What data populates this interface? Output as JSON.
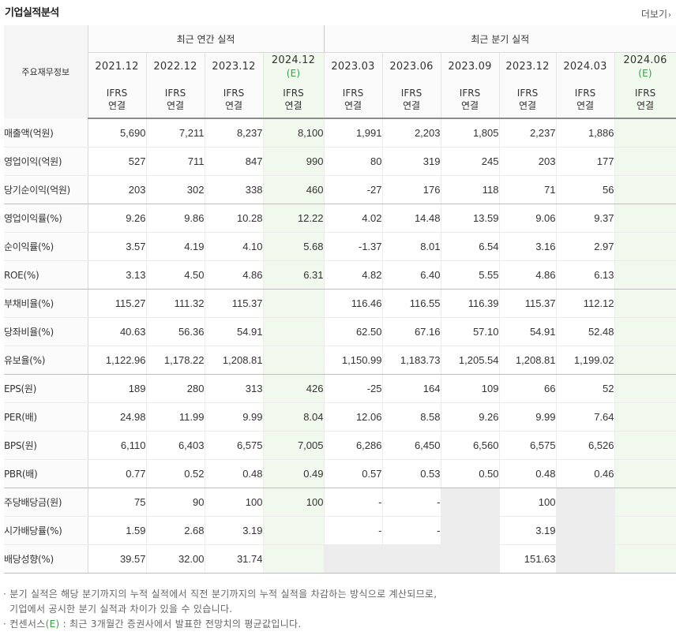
{
  "title": "기업실적분석",
  "more_label": "더보기",
  "more_arrow": "›",
  "header": {
    "key_label": "주요재무정보",
    "annual_group": "최근 연간 실적",
    "quarter_group": "최근 분기 실적",
    "periods": [
      {
        "date": "2021.12",
        "e": ""
      },
      {
        "date": "2022.12",
        "e": ""
      },
      {
        "date": "2023.12",
        "e": ""
      },
      {
        "date": "2024.12",
        "e": "(E)"
      },
      {
        "date": "2023.03",
        "e": ""
      },
      {
        "date": "2023.06",
        "e": ""
      },
      {
        "date": "2023.09",
        "e": ""
      },
      {
        "date": "2023.12",
        "e": ""
      },
      {
        "date": "2024.03",
        "e": ""
      },
      {
        "date": "2024.06",
        "e": "(E)"
      }
    ],
    "ifrs": "IFRS",
    "consolidated": "연결"
  },
  "rows": [
    {
      "label": "매출액(억원)",
      "values": [
        "5,690",
        "7,211",
        "8,237",
        "8,100",
        "1,991",
        "2,203",
        "1,805",
        "2,237",
        "1,886",
        ""
      ]
    },
    {
      "label": "영업이익(억원)",
      "values": [
        "527",
        "711",
        "847",
        "990",
        "80",
        "319",
        "245",
        "203",
        "177",
        ""
      ]
    },
    {
      "label": "당기순이익(억원)",
      "values": [
        "203",
        "302",
        "338",
        "460",
        "-27",
        "176",
        "118",
        "71",
        "56",
        ""
      ]
    },
    {
      "label": "영업이익률(%)",
      "values": [
        "9.26",
        "9.86",
        "10.28",
        "12.22",
        "4.02",
        "14.48",
        "13.59",
        "9.06",
        "9.37",
        ""
      ]
    },
    {
      "label": "순이익률(%)",
      "values": [
        "3.57",
        "4.19",
        "4.10",
        "5.68",
        "-1.37",
        "8.01",
        "6.54",
        "3.16",
        "2.97",
        ""
      ]
    },
    {
      "label": "ROE(%)",
      "values": [
        "3.13",
        "4.50",
        "4.86",
        "6.31",
        "4.82",
        "6.40",
        "5.55",
        "4.86",
        "6.13",
        ""
      ]
    },
    {
      "label": "부채비율(%)",
      "values": [
        "115.27",
        "111.32",
        "115.37",
        "",
        "116.46",
        "116.55",
        "116.39",
        "115.37",
        "112.12",
        ""
      ]
    },
    {
      "label": "당좌비율(%)",
      "values": [
        "40.63",
        "56.36",
        "54.91",
        "",
        "62.50",
        "67.16",
        "57.10",
        "54.91",
        "52.48",
        ""
      ]
    },
    {
      "label": "유보율(%)",
      "values": [
        "1,122.96",
        "1,178.22",
        "1,208.81",
        "",
        "1,150.99",
        "1,183.73",
        "1,205.54",
        "1,208.81",
        "1,199.02",
        ""
      ]
    },
    {
      "label": "EPS(원)",
      "values": [
        "189",
        "280",
        "313",
        "426",
        "-25",
        "164",
        "109",
        "66",
        "52",
        ""
      ]
    },
    {
      "label": "PER(배)",
      "values": [
        "24.98",
        "11.99",
        "9.99",
        "8.04",
        "12.06",
        "8.58",
        "9.26",
        "9.99",
        "7.64",
        ""
      ]
    },
    {
      "label": "BPS(원)",
      "values": [
        "6,110",
        "6,403",
        "6,575",
        "7,005",
        "6,286",
        "6,450",
        "6,560",
        "6,575",
        "6,526",
        ""
      ]
    },
    {
      "label": "PBR(배)",
      "values": [
        "0.77",
        "0.52",
        "0.48",
        "0.49",
        "0.57",
        "0.53",
        "0.50",
        "0.48",
        "0.46",
        ""
      ]
    },
    {
      "label": "주당배당금(원)",
      "values": [
        "75",
        "90",
        "100",
        "100",
        "-",
        "-",
        "",
        "100",
        "",
        ""
      ]
    },
    {
      "label": "시가배당률(%)",
      "values": [
        "1.59",
        "2.68",
        "3.19",
        "",
        "-",
        "-",
        "",
        "3.19",
        "",
        ""
      ]
    },
    {
      "label": "배당성향(%)",
      "values": [
        "39.57",
        "32.00",
        "31.74",
        "",
        "",
        "",
        "",
        "151.63",
        "",
        ""
      ]
    }
  ],
  "notes": {
    "line1": "분기 실적은 해당 분기까지의 누적 실적에서 직전 분기까지의 누적 실적을 차감하는 방식으로 계산되므로,",
    "line2": "기업에서 공시한 분기 실적과 차이가 있을 수 있습니다.",
    "line3_prefix": "컨센서스",
    "line3_e": "(E)",
    "line3_suffix": " : 최근 3개월간 증권사에서 발표한 전망치의 평균값입니다.",
    "bullet": "·"
  },
  "colors": {
    "negative": "#d0021b",
    "ifrs": "#f4750b",
    "estimate_bg": "#f1f9ee",
    "estimate_text": "#3b9c48"
  }
}
